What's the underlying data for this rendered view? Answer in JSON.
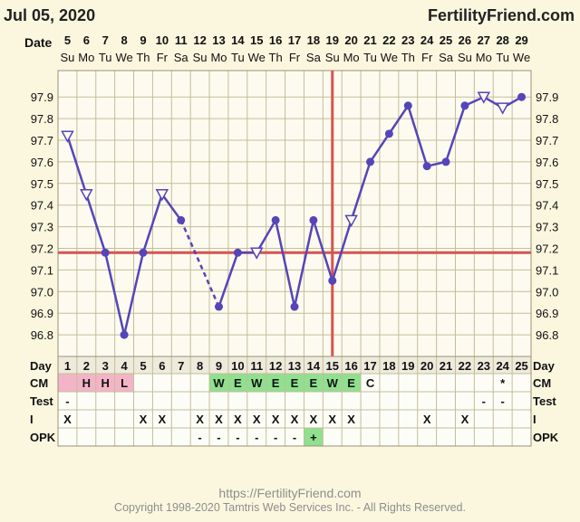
{
  "header": {
    "date": "Jul 05, 2020",
    "brand": "FertilityFriend.com",
    "date_label": "Date"
  },
  "footer": {
    "url": "https://FertilityFriend.com",
    "copyright": "Copyright 1998-2020 Tamtris Web Services Inc. - All Rights Reserved."
  },
  "colors": {
    "background": "#fbf7df",
    "grid": "#c4bd98",
    "series": "#5545b8",
    "coverline": "#d9534f",
    "pink": "#f4b4c8",
    "green": "#8fe08f"
  },
  "chart_data": {
    "type": "line",
    "title": "",
    "xlabel": "Date",
    "ylabel": "",
    "ylim": [
      96.7,
      98.0
    ],
    "y_ticks": [
      "96.8",
      "96.9",
      "97.0",
      "97.1",
      "97.2",
      "97.3",
      "97.4",
      "97.5",
      "97.6",
      "97.7",
      "97.8",
      "97.9"
    ],
    "dates": [
      "5",
      "6",
      "7",
      "8",
      "9",
      "10",
      "11",
      "12",
      "13",
      "14",
      "15",
      "16",
      "17",
      "18",
      "19",
      "20",
      "21",
      "22",
      "23",
      "24",
      "25",
      "26",
      "27",
      "28",
      "29"
    ],
    "weekdays": [
      "Su",
      "Mo",
      "Tu",
      "We",
      "Th",
      "Fr",
      "Sa",
      "Su",
      "Mo",
      "Tu",
      "We",
      "Th",
      "Fr",
      "Sa",
      "Su",
      "Mo",
      "Tu",
      "We",
      "Th",
      "Fr",
      "Sa",
      "Su",
      "Mo",
      "Tu",
      "We"
    ],
    "cycle_days": [
      "1",
      "2",
      "3",
      "4",
      "5",
      "6",
      "7",
      "8",
      "9",
      "10",
      "11",
      "12",
      "13",
      "14",
      "15",
      "16",
      "17",
      "18",
      "19",
      "20",
      "21",
      "22",
      "23",
      "24",
      "25"
    ],
    "temps": [
      97.72,
      97.45,
      97.18,
      96.8,
      97.18,
      97.45,
      97.33,
      null,
      96.93,
      97.18,
      97.18,
      97.33,
      96.93,
      97.33,
      97.05,
      97.33,
      97.6,
      97.73,
      97.86,
      97.58,
      97.6,
      97.86,
      97.9,
      97.85,
      97.9
    ],
    "markers": [
      "open-triangle",
      "open-triangle",
      "dot",
      "dot",
      "dot",
      "open-triangle",
      "dot",
      "none",
      "dot",
      "dot",
      "open-triangle",
      "dot",
      "dot",
      "dot",
      "dot",
      "open-triangle",
      "dot",
      "dot",
      "dot",
      "dot",
      "dot",
      "dot",
      "open-triangle",
      "open-triangle",
      "dot"
    ],
    "dashed_segments": [
      [
        6,
        8
      ]
    ],
    "coverline": 97.18,
    "ovulation_day_index": 14,
    "grid": true,
    "legend": "none",
    "row_labels": {
      "day": "Day",
      "cm": "CM",
      "test": "Test",
      "i": "I",
      "opk": "OPK"
    },
    "rows": {
      "cm": [
        "",
        "H",
        "H",
        "L",
        "",
        "",
        "",
        "",
        "W",
        "E",
        "W",
        "E",
        "E",
        "E",
        "W",
        "E",
        "C",
        "",
        "",
        "",
        "",
        "",
        "",
        "*",
        ""
      ],
      "cm_color": [
        "pink",
        "pink",
        "pink",
        "pink",
        "",
        "",
        "",
        "",
        "green",
        "green",
        "green",
        "green",
        "green",
        "green",
        "green",
        "green",
        "",
        "",
        "",
        "",
        "",
        "",
        "",
        "",
        ""
      ],
      "test": [
        "-",
        "",
        "",
        "",
        "",
        "",
        "",
        "",
        "",
        "",
        "",
        "",
        "",
        "",
        "",
        "",
        "",
        "",
        "",
        "",
        "",
        "",
        "-",
        "-",
        ""
      ],
      "intercourse": [
        "X",
        "",
        "",
        "",
        "X",
        "X",
        "",
        "X",
        "X",
        "X",
        "X",
        "X",
        "X",
        "X",
        "X",
        "X",
        "",
        "",
        "",
        "X",
        "",
        "X",
        "",
        "",
        ""
      ],
      "opk": [
        "",
        "",
        "",
        "",
        "",
        "",
        "",
        "-",
        "-",
        "-",
        "-",
        "-",
        "-",
        "+",
        "",
        "",
        "",
        "",
        "",
        "",
        "",
        "",
        "",
        "",
        ""
      ],
      "opk_color": [
        "",
        "",
        "",
        "",
        "",
        "",
        "",
        "",
        "",
        "",
        "",
        "",
        "",
        "green",
        "",
        "",
        "",
        "",
        "",
        "",
        "",
        "",
        "",
        "",
        ""
      ]
    }
  }
}
